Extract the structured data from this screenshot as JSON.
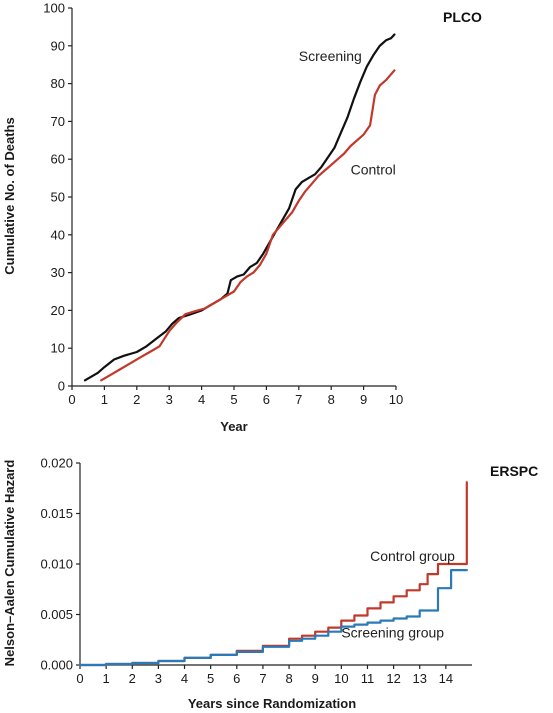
{
  "chart_data": [
    {
      "type": "line",
      "title": "PLCO",
      "xlabel": "Year",
      "ylabel": "Cumulative No. of Deaths",
      "xlim": [
        0,
        10
      ],
      "ylim": [
        0,
        100
      ],
      "xticks": [
        0,
        1,
        2,
        3,
        4,
        5,
        6,
        7,
        8,
        9,
        10
      ],
      "yticks": [
        0,
        10,
        20,
        30,
        40,
        50,
        60,
        70,
        80,
        90,
        100
      ],
      "grid": false,
      "series": [
        {
          "name": "Screening",
          "color": "#111111",
          "x": [
            0.4,
            0.8,
            1.0,
            1.3,
            1.6,
            2.0,
            2.3,
            2.6,
            2.9,
            3.1,
            3.3,
            3.6,
            4.0,
            4.3,
            4.6,
            4.8,
            4.9,
            5.1,
            5.3,
            5.5,
            5.7,
            5.9,
            6.1,
            6.3,
            6.5,
            6.7,
            6.9,
            7.1,
            7.3,
            7.5,
            7.7,
            7.9,
            8.1,
            8.3,
            8.5,
            8.7,
            8.9,
            9.1,
            9.3,
            9.5,
            9.7,
            9.85,
            9.95
          ],
          "y": [
            1.5,
            3.5,
            5.0,
            7.0,
            8.0,
            9.0,
            10.5,
            12.5,
            14.5,
            16.5,
            18.0,
            18.8,
            20.0,
            21.5,
            23.0,
            24.5,
            28.0,
            29.0,
            29.5,
            31.5,
            32.5,
            35.0,
            38.0,
            41.0,
            44.0,
            47.0,
            52.0,
            54.0,
            55.0,
            56.0,
            58.0,
            60.5,
            63.0,
            67.0,
            71.0,
            76.0,
            80.5,
            84.5,
            87.5,
            90.0,
            91.5,
            92.0,
            93.0
          ]
        },
        {
          "name": "Control",
          "color": "#c0392b",
          "x": [
            0.9,
            1.2,
            1.5,
            1.8,
            2.1,
            2.4,
            2.7,
            3.0,
            3.2,
            3.5,
            3.8,
            4.1,
            4.4,
            4.7,
            5.0,
            5.2,
            5.4,
            5.6,
            5.8,
            6.0,
            6.2,
            6.4,
            6.6,
            6.8,
            7.0,
            7.2,
            7.4,
            7.6,
            7.8,
            8.0,
            8.2,
            8.4,
            8.6,
            8.8,
            9.0,
            9.2,
            9.35,
            9.5,
            9.7,
            9.85,
            9.95
          ],
          "y": [
            1.5,
            3.0,
            4.5,
            6.0,
            7.5,
            9.0,
            10.5,
            14.5,
            16.5,
            19.0,
            19.8,
            20.5,
            22.0,
            23.5,
            25.0,
            27.5,
            29.0,
            30.0,
            32.0,
            35.0,
            40.0,
            42.0,
            44.0,
            46.0,
            49.0,
            51.5,
            53.5,
            55.5,
            57.0,
            58.5,
            60.0,
            61.5,
            63.5,
            65.0,
            66.5,
            69.0,
            77.0,
            79.5,
            81.0,
            82.5,
            83.5
          ]
        }
      ],
      "annotations": [
        {
          "text": "Screening",
          "x": 7.0,
          "y": 86
        },
        {
          "text": "Control",
          "x": 8.6,
          "y": 56
        }
      ]
    },
    {
      "type": "line",
      "title": "ERSPC",
      "xlabel": "Years since Randomization",
      "ylabel": "Nelson–Aalen Cumulative Hazard",
      "xlim": [
        0,
        15
      ],
      "ylim": [
        0,
        0.02
      ],
      "xticks": [
        0,
        1,
        2,
        3,
        4,
        5,
        6,
        7,
        8,
        9,
        10,
        11,
        12,
        13,
        14
      ],
      "yticks": [
        0.0,
        0.005,
        0.01,
        0.015,
        0.02
      ],
      "ytick_labels": [
        "0.000",
        "0.005",
        "0.010",
        "0.015",
        "0.020"
      ],
      "grid": false,
      "series": [
        {
          "name": "Control group",
          "color": "#c0392b",
          "x": [
            0.0,
            1.0,
            2.0,
            3.0,
            4.0,
            5.0,
            6.0,
            7.0,
            8.0,
            8.5,
            9.0,
            9.5,
            10.0,
            10.5,
            11.0,
            11.5,
            12.0,
            12.5,
            13.0,
            13.3,
            13.7,
            14.0,
            14.5,
            14.75,
            14.8
          ],
          "y": [
            0.0,
            0.0001,
            0.0002,
            0.0004,
            0.0007,
            0.001,
            0.0014,
            0.0019,
            0.0026,
            0.0029,
            0.0033,
            0.0037,
            0.0044,
            0.0049,
            0.0056,
            0.0062,
            0.0068,
            0.0074,
            0.008,
            0.009,
            0.01,
            0.01,
            0.01,
            0.01,
            0.0181
          ]
        },
        {
          "name": "Screening group",
          "color": "#2a7ab8",
          "x": [
            0.0,
            1.0,
            2.0,
            3.0,
            4.0,
            5.0,
            6.0,
            7.0,
            8.0,
            8.5,
            9.0,
            9.5,
            10.0,
            10.5,
            11.0,
            11.5,
            12.0,
            12.5,
            13.0,
            13.5,
            13.7,
            14.0,
            14.2,
            14.5,
            14.8
          ],
          "y": [
            0.0,
            0.0001,
            0.0002,
            0.0004,
            0.0007,
            0.001,
            0.0013,
            0.0018,
            0.0024,
            0.0026,
            0.0029,
            0.0033,
            0.0038,
            0.004,
            0.0042,
            0.0044,
            0.0046,
            0.0048,
            0.0054,
            0.0054,
            0.0076,
            0.0076,
            0.0094,
            0.0094,
            0.0094
          ]
        }
      ],
      "annotations": [
        {
          "text": "Control group",
          "x": 11.1,
          "y": 0.0103
        },
        {
          "text": "Screening group",
          "x": 10.0,
          "y": 0.0027
        }
      ]
    }
  ]
}
